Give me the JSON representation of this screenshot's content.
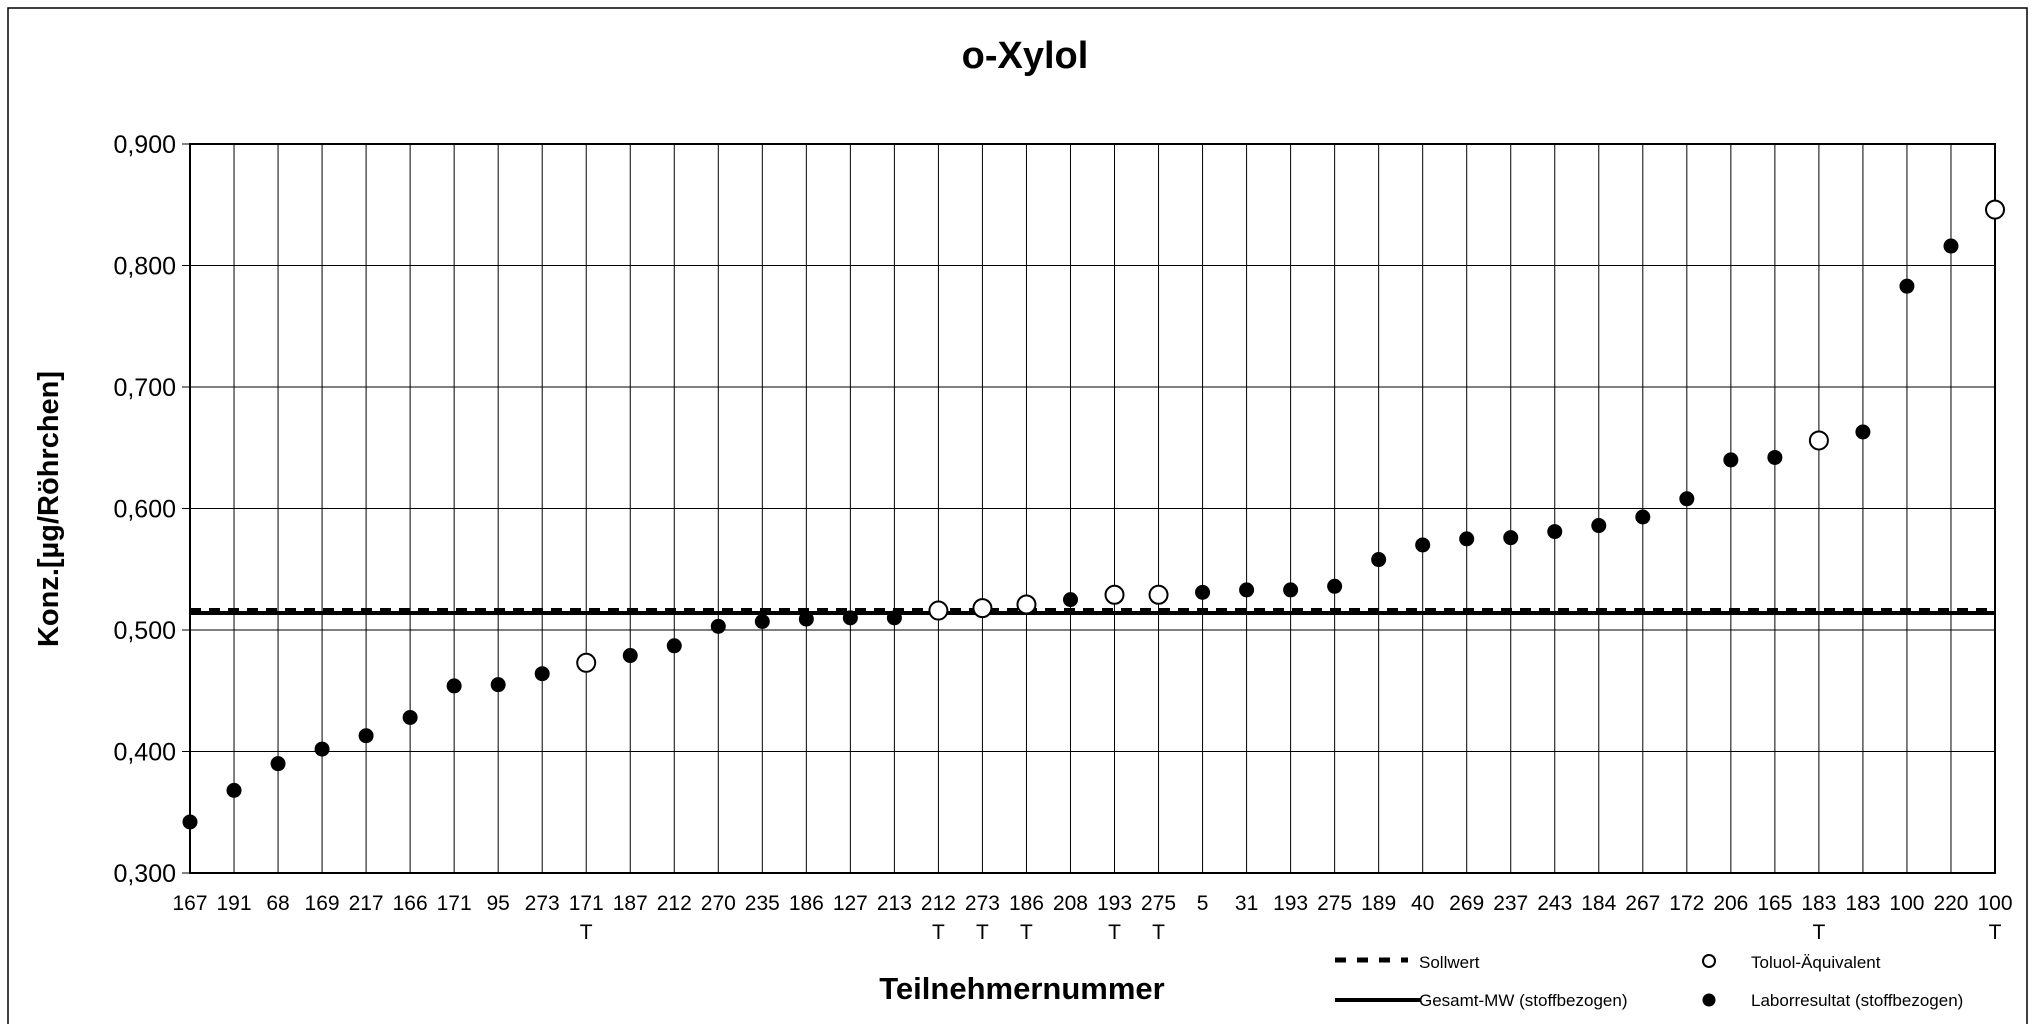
{
  "chart_data": {
    "type": "scatter",
    "title": "o-Xylol",
    "xlabel": "Teilnehmernummer",
    "ylabel": "Konz.[µg/Röhrchen]",
    "ylim": [
      0.3,
      0.9
    ],
    "yticks": [
      "0,300",
      "0,400",
      "0,500",
      "0,600",
      "0,700",
      "0,800",
      "0,900"
    ],
    "grid": true,
    "categories": [
      "167",
      "191",
      "68",
      "169",
      "217",
      "166",
      "171",
      "95",
      "273",
      "171",
      "187",
      "212",
      "270",
      "235",
      "186",
      "127",
      "213",
      "212",
      "273",
      "186",
      "208",
      "193",
      "275",
      "5",
      "31",
      "193",
      "275",
      "189",
      "40",
      "269",
      "237",
      "243",
      "184",
      "267",
      "172",
      "206",
      "165",
      "183",
      "183",
      "100",
      "220",
      "100"
    ],
    "sublabels": [
      "",
      "",
      "",
      "",
      "",
      "",
      "",
      "",
      "",
      "T",
      "",
      "",
      "",
      "",
      "",
      "",
      "",
      "T",
      "T",
      "T",
      "",
      "T",
      "T",
      "",
      "",
      "",
      "",
      "",
      "",
      "",
      "",
      "",
      "",
      "",
      "",
      "",
      "",
      "T",
      "",
      "",
      "",
      "T"
    ],
    "series": [
      {
        "name": "Laborresultat (stoffbezogen)",
        "marker": "filled-circle",
        "points": [
          {
            "x": 0,
            "y": 0.342
          },
          {
            "x": 1,
            "y": 0.368
          },
          {
            "x": 2,
            "y": 0.39
          },
          {
            "x": 3,
            "y": 0.402
          },
          {
            "x": 4,
            "y": 0.413
          },
          {
            "x": 5,
            "y": 0.428
          },
          {
            "x": 6,
            "y": 0.454
          },
          {
            "x": 7,
            "y": 0.455
          },
          {
            "x": 8,
            "y": 0.464
          },
          {
            "x": 10,
            "y": 0.479
          },
          {
            "x": 11,
            "y": 0.487
          },
          {
            "x": 12,
            "y": 0.503
          },
          {
            "x": 13,
            "y": 0.507
          },
          {
            "x": 14,
            "y": 0.509
          },
          {
            "x": 15,
            "y": 0.51
          },
          {
            "x": 16,
            "y": 0.51
          },
          {
            "x": 20,
            "y": 0.525
          },
          {
            "x": 23,
            "y": 0.531
          },
          {
            "x": 24,
            "y": 0.533
          },
          {
            "x": 25,
            "y": 0.533
          },
          {
            "x": 26,
            "y": 0.536
          },
          {
            "x": 27,
            "y": 0.558
          },
          {
            "x": 28,
            "y": 0.57
          },
          {
            "x": 29,
            "y": 0.575
          },
          {
            "x": 30,
            "y": 0.576
          },
          {
            "x": 31,
            "y": 0.581
          },
          {
            "x": 32,
            "y": 0.586
          },
          {
            "x": 33,
            "y": 0.593
          },
          {
            "x": 34,
            "y": 0.608
          },
          {
            "x": 35,
            "y": 0.64
          },
          {
            "x": 36,
            "y": 0.642
          },
          {
            "x": 38,
            "y": 0.663
          },
          {
            "x": 39,
            "y": 0.783
          },
          {
            "x": 40,
            "y": 0.816
          }
        ]
      },
      {
        "name": "Toluol-Äquivalent",
        "marker": "open-circle",
        "points": [
          {
            "x": 9,
            "y": 0.473
          },
          {
            "x": 17,
            "y": 0.516
          },
          {
            "x": 18,
            "y": 0.518
          },
          {
            "x": 19,
            "y": 0.521
          },
          {
            "x": 21,
            "y": 0.529
          },
          {
            "x": 22,
            "y": 0.529
          },
          {
            "x": 37,
            "y": 0.656
          },
          {
            "x": 41,
            "y": 0.846
          }
        ]
      }
    ],
    "reference_lines": [
      {
        "name": "Sollwert",
        "style": "dashed",
        "y": 0.516
      },
      {
        "name": "Gesamt-MW (stoffbezogen)",
        "style": "solid",
        "y": 0.514
      }
    ],
    "legend": {
      "position": "bottom-right",
      "entries": [
        "Sollwert",
        "Toluol-Äquivalent",
        "Gesamt-MW (stoffbezogen)",
        "Laborresultat (stoffbezogen)"
      ]
    }
  }
}
